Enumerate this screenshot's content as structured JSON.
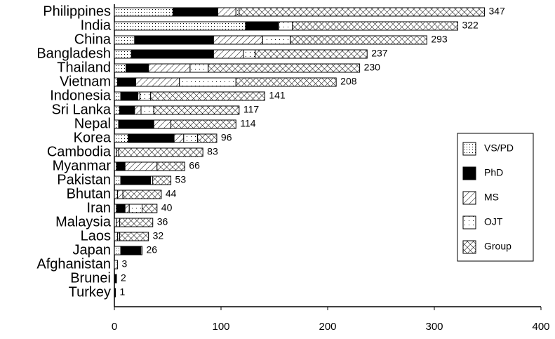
{
  "chart_data": {
    "type": "stacked-bar-horizontal",
    "categories": [
      "Philippines",
      "India",
      "China",
      "Bangladesh",
      "Thailand",
      "Vietnam",
      "Indonesia",
      "Sri Lanka",
      "Nepal",
      "Korea",
      "Cambodia",
      "Myanmar",
      "Pakistan",
      "Bhutan",
      "Iran",
      "Malaysia",
      "Laos",
      "Japan",
      "Afghanistan",
      "Brunei",
      "Turkey"
    ],
    "series": [
      {
        "name": "VS/PD",
        "color": "#000000",
        "pattern": "dots",
        "values": [
          55,
          123,
          19,
          16,
          11,
          3,
          6,
          5,
          4,
          13,
          2,
          2,
          6,
          3,
          2,
          2,
          3,
          6,
          3,
          0,
          0
        ]
      },
      {
        "name": "PhD",
        "color": "#000000",
        "pattern": "solid",
        "values": [
          42,
          31,
          74,
          77,
          21,
          17,
          16,
          14,
          33,
          43,
          0,
          8,
          28,
          0,
          8,
          0,
          0,
          19,
          0,
          2,
          1
        ]
      },
      {
        "name": "MS",
        "color": "#000000",
        "pattern": "hatch",
        "values": [
          17,
          0,
          46,
          28,
          39,
          41,
          2,
          6,
          16,
          9,
          2,
          30,
          0,
          5,
          4,
          3,
          2,
          0,
          0,
          0,
          0
        ]
      },
      {
        "name": "OJT",
        "color": "#000000",
        "pattern": "sparse-dots",
        "values": [
          3,
          13,
          26,
          11,
          17,
          53,
          10,
          12,
          0,
          13,
          0,
          0,
          2,
          0,
          12,
          0,
          0,
          1,
          0,
          0,
          0
        ]
      },
      {
        "name": "Group",
        "color": "#000000",
        "pattern": "crosshatch",
        "values": [
          230,
          155,
          128,
          105,
          142,
          94,
          107,
          80,
          61,
          18,
          79,
          26,
          17,
          36,
          14,
          31,
          27,
          0,
          0,
          0,
          0
        ]
      }
    ],
    "totals": [
      347,
      322,
      293,
      237,
      230,
      208,
      141,
      117,
      114,
      96,
      83,
      66,
      53,
      44,
      40,
      36,
      32,
      26,
      3,
      2,
      1
    ],
    "xlim": [
      0,
      400
    ],
    "xticks": [
      0,
      100,
      200,
      300,
      400
    ],
    "legend": "right"
  }
}
